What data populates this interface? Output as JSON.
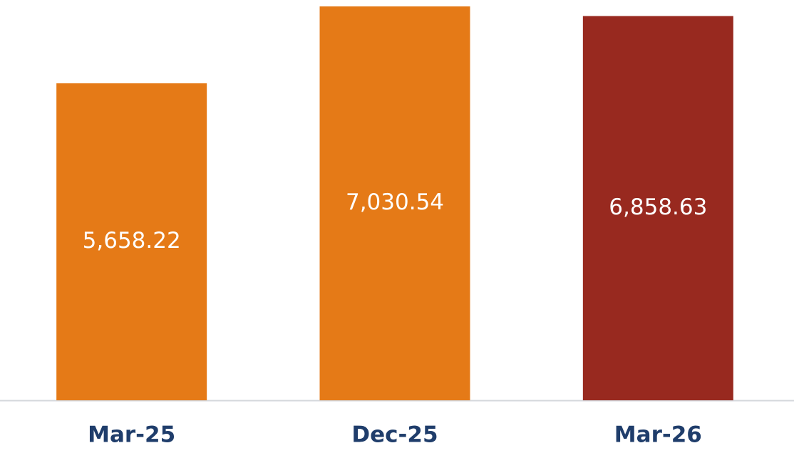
{
  "chart_data": {
    "type": "bar",
    "categories": [
      "Mar-25",
      "Dec-25",
      "Mar-26"
    ],
    "values": [
      5658.22,
      7030.54,
      6858.63
    ],
    "value_labels": [
      "5,658.22",
      "7,030.54",
      "6,858.63"
    ],
    "colors": [
      "#e57a17",
      "#e57a17",
      "#98291f"
    ],
    "ylim": [
      0,
      7145
    ]
  }
}
